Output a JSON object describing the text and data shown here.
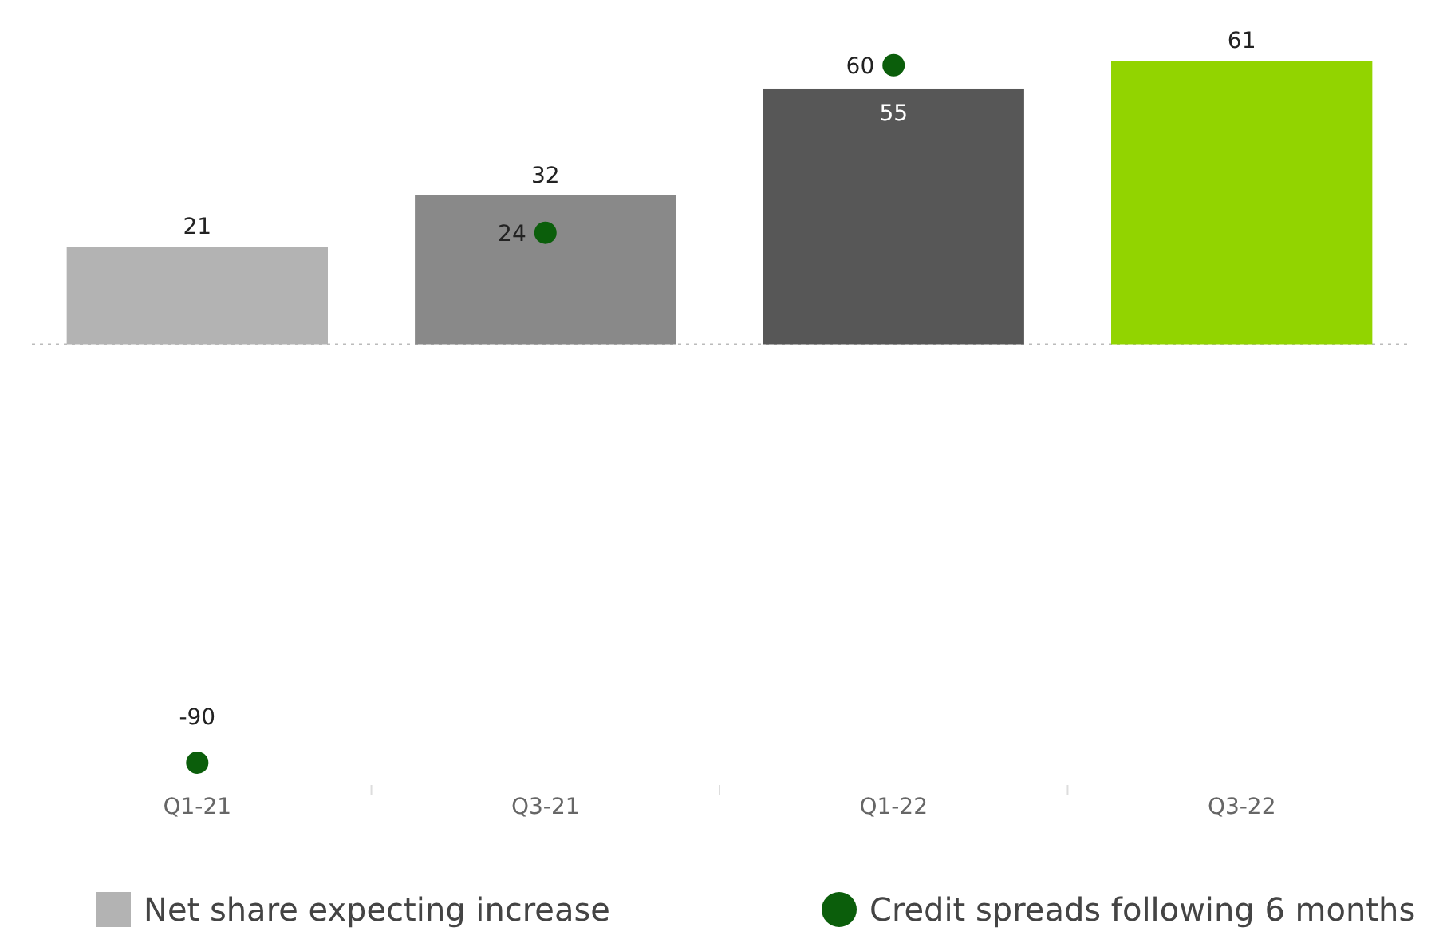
{
  "chart_data": {
    "type": "bar",
    "categories": [
      "Q1-21",
      "Q3-21",
      "Q1-22",
      "Q3-22"
    ],
    "data_labels": true,
    "legend": "bottom",
    "marker": "circle",
    "ref_lines": [
      {
        "axis": "y",
        "value": 0,
        "color": "#bbbbbb",
        "line_style": "dotted"
      }
    ],
    "series": [
      {
        "name": "Net share expecting increase",
        "color": "#b3b3b3",
        "colors": [
          "#b3b3b3",
          "#898989",
          "#575757",
          "#92d400"
        ],
        "values": [
          21,
          32,
          55,
          61
        ]
      },
      {
        "name": "Credit spreads following 6 months",
        "type": "scatter",
        "color": "#0b5e0b",
        "values": [
          -90,
          24,
          60,
          null
        ]
      }
    ]
  }
}
